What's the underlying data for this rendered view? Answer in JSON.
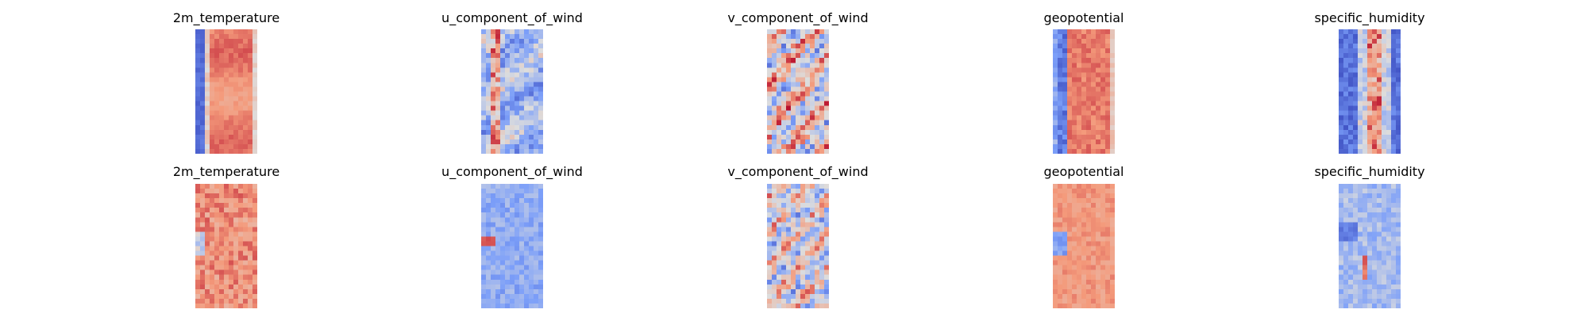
{
  "chart_data": {
    "type": "heatmap",
    "colormap": "coolwarm",
    "axes_visible": false,
    "grid": false,
    "rows": [
      {
        "panels": [
          {
            "title": "2m_temperature",
            "pattern": "temp_top",
            "seed": 11
          },
          {
            "title": "u_component_of_wind",
            "pattern": "uwind_top",
            "seed": 12
          },
          {
            "title": "v_component_of_wind",
            "pattern": "vwind_top",
            "seed": 13
          },
          {
            "title": "geopotential",
            "pattern": "geo_top",
            "seed": 14
          },
          {
            "title": "specific_humidity",
            "pattern": "hum_top",
            "seed": 15
          }
        ]
      },
      {
        "panels": [
          {
            "title": "2m_temperature",
            "pattern": "temp_bot",
            "seed": 21
          },
          {
            "title": "u_component_of_wind",
            "pattern": "uwind_bot",
            "seed": 22
          },
          {
            "title": "v_component_of_wind",
            "pattern": "vwind_bot",
            "seed": 23
          },
          {
            "title": "geopotential",
            "pattern": "geo_bot",
            "seed": 24
          },
          {
            "title": "specific_humidity",
            "pattern": "hum_bot",
            "seed": 25
          }
        ]
      }
    ]
  }
}
